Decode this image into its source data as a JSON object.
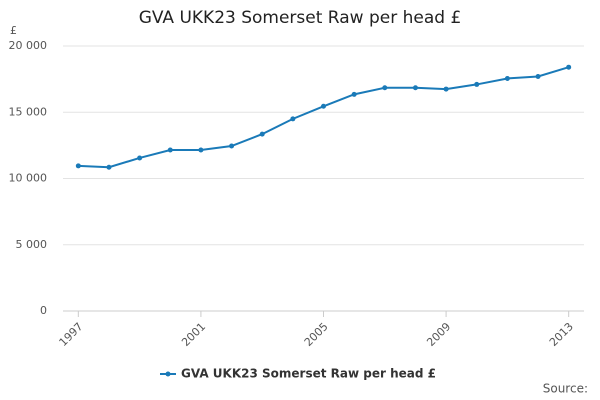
{
  "chart_data": {
    "type": "line",
    "title": "GVA UKK23 Somerset Raw per head £",
    "y_label": "£",
    "x": [
      1997,
      1998,
      1999,
      2000,
      2001,
      2002,
      2003,
      2004,
      2005,
      2006,
      2007,
      2008,
      2009,
      2010,
      2011,
      2012,
      2013
    ],
    "series": [
      {
        "name": "GVA UKK23 Somerset Raw per head £",
        "color": "#1a7ab8",
        "values": [
          10950,
          10850,
          11550,
          12150,
          12150,
          12450,
          13350,
          14500,
          15450,
          16350,
          16850,
          16850,
          16750,
          17100,
          17550,
          17700,
          18400
        ]
      }
    ],
    "xlim": [
      1996.5,
      2013.5
    ],
    "xticks": [
      1997,
      2001,
      2005,
      2009,
      2013
    ],
    "ylim": [
      0,
      20000
    ],
    "yticks": [
      0,
      {
        "value": 5000,
        "label": "5 000"
      },
      {
        "value": 10000,
        "label": "10 000"
      },
      {
        "value": 15000,
        "label": "15 000"
      },
      {
        "value": 20000,
        "label": "20 000"
      }
    ],
    "grid": true,
    "legend": "bottom",
    "source": "Source:"
  }
}
